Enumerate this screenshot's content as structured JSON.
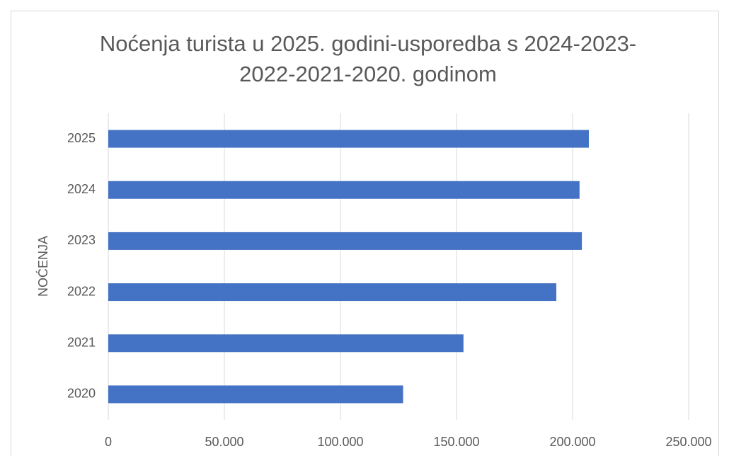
{
  "chart_data": {
    "type": "bar",
    "orientation": "horizontal",
    "title": "Noćenja turista u 2025. godini-usporedba s 2024-2023-2022-2021-2020. godinom",
    "y_label": "NOĆENJA",
    "categories": [
      "2020",
      "2021",
      "2022",
      "2023",
      "2024",
      "2025"
    ],
    "values": [
      127000,
      153000,
      193000,
      204000,
      203000,
      207000
    ],
    "color": "#4472c4",
    "xlim": [
      0,
      250000
    ],
    "xticks": [
      0,
      {
        "value": 50000,
        "label": "50.000"
      },
      {
        "value": 100000,
        "label": "100.000"
      },
      {
        "value": 150000,
        "label": "150.000"
      },
      {
        "value": 200000,
        "label": "200.000"
      },
      {
        "value": 250000,
        "label": "250.000"
      }
    ],
    "grid": true
  }
}
